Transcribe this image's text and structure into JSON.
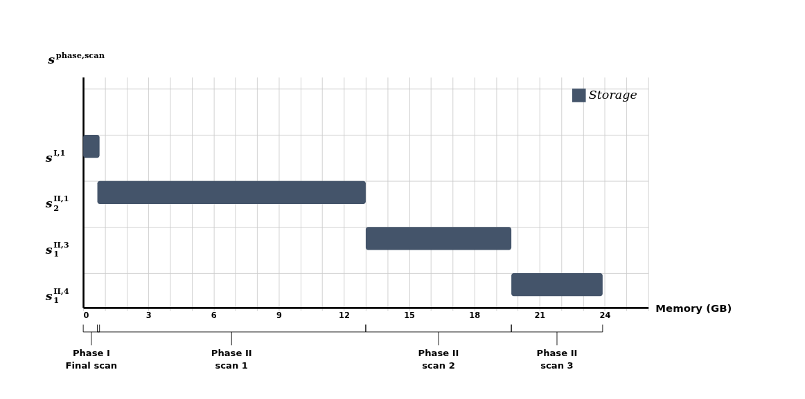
{
  "chart_data": {
    "type": "bar",
    "orientation": "horizontal",
    "ylabel": "s$^{phase,scan}$",
    "xlabel": "Memory (GB)",
    "categories": [
      null,
      "s$^{I,1}$",
      "s$_{2}$$^{II,1}$",
      "s$_{1}$$^{II,3}$",
      "s$_{1}$$^{II,4}$"
    ],
    "series": [
      {
        "name": "Storage",
        "color": "#44546a",
        "base": [
          null,
          0,
          0.65,
          13,
          19.7
        ],
        "values": [
          null,
          0.75,
          12.35,
          6.7,
          4.2
        ]
      }
    ],
    "xlim": [
      0,
      26
    ],
    "xticks": [
      0,
      {
        "value": 1,
        "label": null
      },
      {
        "value": 2,
        "label": null
      },
      3,
      {
        "value": 4,
        "label": null
      },
      {
        "value": 5,
        "label": null
      },
      6,
      {
        "value": 7,
        "label": null
      },
      {
        "value": 8,
        "label": null
      },
      9,
      {
        "value": 10,
        "label": null
      },
      {
        "value": 11,
        "label": null
      },
      12,
      {
        "value": 13,
        "label": null
      },
      {
        "value": 14,
        "label": null
      },
      15,
      {
        "value": 16,
        "label": null
      },
      {
        "value": 17,
        "label": null
      },
      18,
      {
        "value": 19,
        "label": null
      },
      {
        "value": 20,
        "label": null
      },
      21,
      {
        "value": 22,
        "label": null
      },
      {
        "value": 23,
        "label": null
      },
      24,
      {
        "value": 25,
        "label": null
      },
      {
        "value": 26,
        "label": null
      }
    ],
    "grid": true,
    "legend": "top right",
    "annotations": [
      "Phase I\nFinal scan",
      "Phase II\nscan 1",
      "Phase II\nscan 2",
      "Phase II\nscan 3"
    ]
  }
}
